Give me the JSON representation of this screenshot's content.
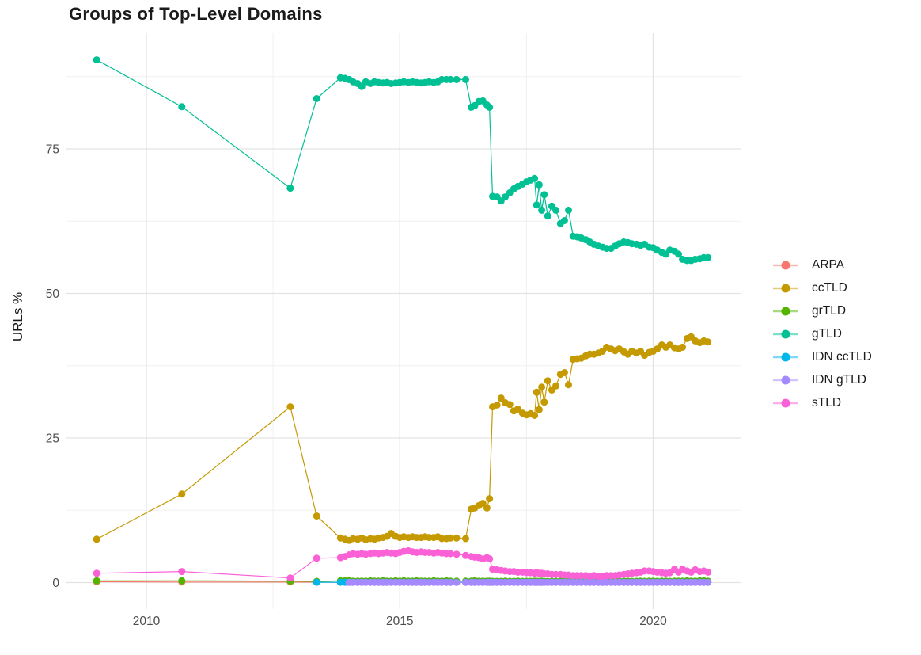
{
  "chart_data": {
    "type": "line",
    "title": "Groups of Top-Level Domains",
    "xlabel": "",
    "ylabel": "URLs %",
    "x_ticks": [
      2010,
      2015,
      2020
    ],
    "x_minor": [
      2012.5,
      2017.5
    ],
    "y_ticks": [
      0,
      25,
      50,
      75
    ],
    "y_minor": [
      12.5,
      37.5,
      62.5,
      87.5
    ],
    "xlim": [
      2008.4,
      2021.7
    ],
    "ylim": [
      -4.5,
      94.9
    ],
    "grid": true,
    "legend_position": "right",
    "x": [
      2009.02,
      2010.7,
      2012.84,
      2013.36,
      2013.83,
      2013.92,
      2014,
      2014.08,
      2014.17,
      2014.25,
      2014.33,
      2014.42,
      2014.5,
      2014.58,
      2014.67,
      2014.75,
      2014.83,
      2014.92,
      2015,
      2015.08,
      2015.17,
      2015.25,
      2015.33,
      2015.42,
      2015.5,
      2015.58,
      2015.67,
      2015.75,
      2015.83,
      2015.92,
      2016,
      2016.12,
      2016.3,
      2016.41,
      2016.48,
      2016.56,
      2016.64,
      2016.72,
      2016.77,
      2016.83,
      2016.92,
      2017,
      2017.08,
      2017.17,
      2017.25,
      2017.33,
      2017.42,
      2017.5,
      2017.58,
      2017.66,
      2017.7,
      2017.75,
      2017.8,
      2017.85,
      2017.92,
      2018,
      2018.08,
      2018.17,
      2018.25,
      2018.33,
      2018.42,
      2018.5,
      2018.58,
      2018.67,
      2018.75,
      2018.83,
      2018.92,
      2019,
      2019.08,
      2019.17,
      2019.25,
      2019.33,
      2019.42,
      2019.5,
      2019.58,
      2019.67,
      2019.75,
      2019.83,
      2019.92,
      2020,
      2020.08,
      2020.17,
      2020.25,
      2020.33,
      2020.42,
      2020.5,
      2020.58,
      2020.67,
      2020.75,
      2020.83,
      2020.92,
      2021,
      2021.08
    ],
    "series": [
      {
        "name": "ARPA",
        "color": "#F8766D",
        "values": [
          0.15,
          0.1,
          0.1,
          0.08,
          0.05,
          0.05,
          0.05,
          0.05,
          0.05,
          0.05,
          0.05,
          0.05,
          0.05,
          0.05,
          0.05,
          0.05,
          0.05,
          0.05,
          0.05,
          0.05,
          0.05,
          0.05,
          0.05,
          0.05,
          0.05,
          0.05,
          0.05,
          0.05,
          0.05,
          0.05,
          0.05,
          0.05,
          0.05,
          0.05,
          0.05,
          0.05,
          0.05,
          0.05,
          0.05,
          0.05,
          0.05,
          0.05,
          0.05,
          0.05,
          0.05,
          0.05,
          0.05,
          0.05,
          0.05,
          0.05,
          0.05,
          0.05,
          0.05,
          0.05,
          0.05,
          0.05,
          0.05,
          0.05,
          0.05,
          0.05,
          0.05,
          0.05,
          0.05,
          0.05,
          0.05,
          0.05,
          0.05,
          0.05,
          0.05,
          0.05,
          0.05,
          0.05,
          0.05,
          0.05,
          0.05,
          0.05,
          0.05,
          0.05,
          0.05,
          0.05,
          0.05,
          0.05,
          0.05,
          0.05,
          0.05,
          0.05,
          0.05,
          0.05,
          0.05,
          0.05,
          0.05,
          0.05,
          0.05
        ]
      },
      {
        "name": "ccTLD",
        "color": "#C49A00",
        "values": [
          7.5,
          15.3,
          30.4,
          11.5,
          7.7,
          7.5,
          7.3,
          7.6,
          7.5,
          7.7,
          7.4,
          7.6,
          7.5,
          7.7,
          7.8,
          8,
          8.5,
          8,
          7.8,
          7.9,
          7.8,
          7.9,
          7.8,
          7.8,
          7.9,
          7.8,
          7.8,
          7.9,
          7.6,
          7.6,
          7.7,
          7.7,
          7.6,
          12.7,
          12.9,
          13.3,
          13.7,
          12.9,
          14.5,
          30.4,
          30.7,
          31.9,
          31.1,
          30.8,
          29.7,
          30,
          29.3,
          29,
          29.2,
          28.9,
          32.9,
          29.9,
          33.8,
          31.2,
          34.9,
          33.3,
          34,
          36,
          36.3,
          34.2,
          38.6,
          38.7,
          38.8,
          39.2,
          39.5,
          39.5,
          39.7,
          40,
          40.7,
          40.4,
          40.1,
          40.4,
          39.9,
          39.5,
          40,
          39.7,
          40,
          39.3,
          39.8,
          40,
          40.4,
          41.1,
          40.7,
          41.1,
          40.6,
          40.4,
          40.7,
          42.2,
          42.5,
          41.8,
          41.5,
          41.8,
          41.6
        ]
      },
      {
        "name": "grTLD",
        "color": "#53B400",
        "values": [
          0.3,
          0.3,
          0.25,
          0.2,
          0.3,
          0.3,
          0.3,
          0.25,
          0.25,
          0.25,
          0.25,
          0.3,
          0.25,
          0.25,
          0.3,
          0.25,
          0.25,
          0.3,
          0.25,
          0.3,
          0.25,
          0.25,
          0.3,
          0.25,
          0.25,
          0.25,
          0.3,
          0.25,
          0.25,
          0.3,
          0.25,
          0.25,
          0.25,
          0.25,
          0.3,
          0.25,
          0.25,
          0.25,
          0.25,
          0.2,
          0.2,
          0.2,
          0.25,
          0.2,
          0.2,
          0.25,
          0.2,
          0.2,
          0.2,
          0.25,
          0.2,
          0.2,
          0.25,
          0.2,
          0.2,
          0.2,
          0.2,
          0.25,
          0.2,
          0.2,
          0.2,
          0.25,
          0.2,
          0.2,
          0.25,
          0.2,
          0.2,
          0.2,
          0.25,
          0.2,
          0.2,
          0.25,
          0.2,
          0.25,
          0.2,
          0.2,
          0.25,
          0.2,
          0.25,
          0.25,
          0.2,
          0.25,
          0.25,
          0.2,
          0.25,
          0.25,
          0.25,
          0.3,
          0.25,
          0.25,
          0.3,
          0.3,
          0.25
        ]
      },
      {
        "name": "gTLD",
        "color": "#00C094",
        "values": [
          90.4,
          82.3,
          68.2,
          83.7,
          87.3,
          87.2,
          87,
          86.6,
          86.3,
          85.8,
          86.6,
          86.3,
          86.6,
          86.5,
          86.4,
          86.5,
          86.3,
          86.4,
          86.5,
          86.6,
          86.5,
          86.6,
          86.5,
          86.4,
          86.5,
          86.6,
          86.5,
          86.6,
          87,
          87,
          87,
          87,
          87,
          82.2,
          82.5,
          83.2,
          83.3,
          82.6,
          82.2,
          66.8,
          66.7,
          66,
          66.7,
          67.4,
          68.1,
          68.5,
          68.9,
          69.3,
          69.6,
          69.9,
          65.3,
          68.8,
          64.4,
          67.1,
          63.4,
          65.1,
          64.4,
          62.1,
          62.6,
          64.4,
          59.9,
          59.8,
          59.6,
          59.3,
          58.9,
          58.5,
          58.2,
          58,
          57.8,
          57.8,
          58.2,
          58.6,
          58.9,
          58.8,
          58.6,
          58.5,
          58.3,
          58.5,
          58,
          57.9,
          57.5,
          57.1,
          56.8,
          57.5,
          57.3,
          56.8,
          55.9,
          55.7,
          55.7,
          55.9,
          56,
          56.2,
          56.2
        ]
      },
      {
        "name": "IDN ccTLD",
        "color": "#00B6EB",
        "values": [
          null,
          null,
          null,
          0.05,
          0.05,
          0.05,
          0.05,
          0.05,
          0.05,
          0.05,
          0.05,
          0.05,
          0.05,
          0.05,
          0.05,
          0.05,
          0.05,
          0.05,
          0.05,
          0.05,
          0.05,
          0.05,
          0.05,
          0.05,
          0.05,
          0.05,
          0.05,
          0.05,
          0.05,
          0.05,
          0.05,
          0.05,
          0.05,
          0.05,
          0.05,
          0.05,
          0.05,
          0.05,
          0.05,
          0.05,
          0.05,
          0.05,
          0.05,
          0.05,
          0.05,
          0.05,
          0.05,
          0.05,
          0.05,
          0.05,
          0.05,
          0.05,
          0.05,
          0.05,
          0.05,
          0.05,
          0.05,
          0.05,
          0.05,
          0.05,
          0.05,
          0.05,
          0.05,
          0.05,
          0.05,
          0.05,
          0.05,
          0.05,
          0.05,
          0.05,
          0.05,
          0.05,
          0.05,
          0.05,
          0.05,
          0.05,
          0.05,
          0.05,
          0.05,
          0.05,
          0.05,
          0.05,
          0.05,
          0.05,
          0.05,
          0.05,
          0.05,
          0.05,
          0.05,
          0.05,
          0.05,
          0.05,
          0.05
        ]
      },
      {
        "name": "IDN gTLD",
        "color": "#A58AFF",
        "values": [
          null,
          null,
          null,
          null,
          null,
          null,
          0.03,
          0.03,
          0.03,
          0.03,
          0.03,
          0.03,
          0.03,
          0.03,
          0.03,
          0.03,
          0.03,
          0.03,
          0.03,
          0.03,
          0.03,
          0.03,
          0.03,
          0.03,
          0.03,
          0.03,
          0.03,
          0.03,
          0.03,
          0.03,
          0.03,
          0.03,
          0.03,
          0.03,
          0.03,
          0.03,
          0.03,
          0.03,
          0.03,
          0.03,
          0.03,
          0.03,
          0.03,
          0.03,
          0.03,
          0.03,
          0.03,
          0.03,
          0.03,
          0.03,
          0.03,
          0.03,
          0.03,
          0.03,
          0.03,
          0.03,
          0.03,
          0.03,
          0.03,
          0.03,
          0.03,
          0.03,
          0.03,
          0.03,
          0.03,
          0.03,
          0.03,
          0.03,
          0.03,
          0.03,
          0.03,
          0.03,
          0.03,
          0.03,
          0.03,
          0.03,
          0.03,
          0.03,
          0.03,
          0.03,
          0.03,
          0.03,
          0.03,
          0.03,
          0.03,
          0.03,
          0.03,
          0.03,
          0.03,
          0.03,
          0.03,
          0.03,
          0.03
        ]
      },
      {
        "name": "sTLD",
        "color": "#FB61D7",
        "values": [
          1.6,
          1.9,
          0.8,
          4.2,
          4.3,
          4.5,
          4.8,
          5,
          4.9,
          5,
          4.9,
          5,
          5.1,
          5,
          5.1,
          5.2,
          5.1,
          5,
          5.2,
          5.4,
          5.5,
          5.3,
          5.2,
          5.3,
          5.2,
          5.2,
          5.1,
          5.2,
          5.1,
          5,
          5,
          4.9,
          4.7,
          4.5,
          4.4,
          4.3,
          4.1,
          4.3,
          4.1,
          2.3,
          2.2,
          2.1,
          2,
          1.9,
          1.9,
          1.8,
          1.8,
          1.7,
          1.7,
          1.6,
          1.7,
          1.6,
          1.6,
          1.5,
          1.5,
          1.4,
          1.4,
          1.4,
          1.3,
          1.3,
          1.2,
          1.2,
          1.2,
          1.2,
          1.1,
          1.2,
          1.1,
          1.1,
          1.2,
          1.2,
          1.2,
          1.3,
          1.4,
          1.5,
          1.6,
          1.7,
          1.8,
          2,
          2,
          1.9,
          1.8,
          1.7,
          1.6,
          1.7,
          2.3,
          1.8,
          2.3,
          2,
          1.8,
          2.2,
          1.9,
          2,
          1.8
        ]
      }
    ]
  },
  "colors": {
    "grid_major": "#E3E3E3",
    "grid_minor": "#F0F0F0",
    "tick_label": "#4d4d4d",
    "text": "#1b1b1b"
  }
}
